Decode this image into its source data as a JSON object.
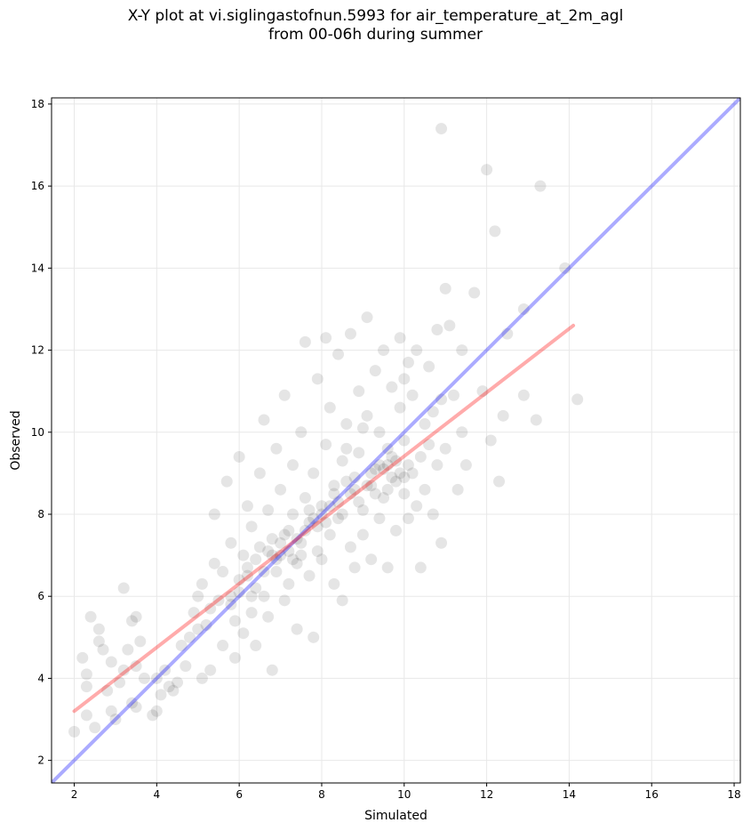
{
  "chart_data": {
    "type": "scatter",
    "title_lines": [
      "X-Y plot at vi.siglingastofnun.5993 for air_temperature_at_2m_agl",
      "from 00-06h during summer"
    ],
    "xlabel": "Simulated",
    "ylabel": "Observed",
    "xlim": [
      1.45,
      18.15
    ],
    "ylim": [
      1.45,
      18.15
    ],
    "xticks": [
      "2",
      "4",
      "6",
      "8",
      "10",
      "12",
      "14",
      "16",
      "18"
    ],
    "yticks": [
      "2",
      "4",
      "6",
      "8",
      "10",
      "12",
      "14",
      "16",
      "18"
    ],
    "grid": true,
    "point_color": "#000000",
    "point_alpha": 0.1,
    "colors": {
      "identity_line": "#0000ff",
      "fit_line": "#ff0000",
      "grid": "#e8e8e8"
    },
    "lines": [
      {
        "role": "identity",
        "x": [
          1.45,
          18.15
        ],
        "y": [
          1.45,
          18.15
        ]
      },
      {
        "role": "regression",
        "x": [
          2.0,
          14.1
        ],
        "y": [
          3.2,
          12.6
        ]
      }
    ],
    "points": [
      [
        2.0,
        2.7
      ],
      [
        2.3,
        3.1
      ],
      [
        2.5,
        2.8
      ],
      [
        2.3,
        3.8
      ],
      [
        2.3,
        4.1
      ],
      [
        2.2,
        4.5
      ],
      [
        2.4,
        5.5
      ],
      [
        2.6,
        4.9
      ],
      [
        2.7,
        4.7
      ],
      [
        2.6,
        5.2
      ],
      [
        2.9,
        3.2
      ],
      [
        2.8,
        3.7
      ],
      [
        2.9,
        4.4
      ],
      [
        3.0,
        3.0
      ],
      [
        3.1,
        3.9
      ],
      [
        3.2,
        4.2
      ],
      [
        3.2,
        6.2
      ],
      [
        3.3,
        4.7
      ],
      [
        3.4,
        5.4
      ],
      [
        3.4,
        3.4
      ],
      [
        3.5,
        3.3
      ],
      [
        3.5,
        4.3
      ],
      [
        3.6,
        4.9
      ],
      [
        3.5,
        5.5
      ],
      [
        3.7,
        4.0
      ],
      [
        3.9,
        3.1
      ],
      [
        4.0,
        3.2
      ],
      [
        4.1,
        3.6
      ],
      [
        4.0,
        4.0
      ],
      [
        4.2,
        4.2
      ],
      [
        4.3,
        3.8
      ],
      [
        4.4,
        3.7
      ],
      [
        4.5,
        3.9
      ],
      [
        4.6,
        4.8
      ],
      [
        4.7,
        4.3
      ],
      [
        4.8,
        5.0
      ],
      [
        4.9,
        5.6
      ],
      [
        5.0,
        6.0
      ],
      [
        5.0,
        5.2
      ],
      [
        5.1,
        4.0
      ],
      [
        5.1,
        6.3
      ],
      [
        5.2,
        5.3
      ],
      [
        5.3,
        5.7
      ],
      [
        5.3,
        4.2
      ],
      [
        5.4,
        6.8
      ],
      [
        5.4,
        8.0
      ],
      [
        5.5,
        5.9
      ],
      [
        5.6,
        6.6
      ],
      [
        5.6,
        4.8
      ],
      [
        5.7,
        8.8
      ],
      [
        5.8,
        6.0
      ],
      [
        5.8,
        7.3
      ],
      [
        5.9,
        5.4
      ],
      [
        5.9,
        4.5
      ],
      [
        6.0,
        6.4
      ],
      [
        6.0,
        9.4
      ],
      [
        6.1,
        7.0
      ],
      [
        6.1,
        5.1
      ],
      [
        6.2,
        8.2
      ],
      [
        6.2,
        6.7
      ],
      [
        6.3,
        5.6
      ],
      [
        6.3,
        7.7
      ],
      [
        6.4,
        4.8
      ],
      [
        6.4,
        6.2
      ],
      [
        6.5,
        9.0
      ],
      [
        6.5,
        7.2
      ],
      [
        6.6,
        6.0
      ],
      [
        6.6,
        10.3
      ],
      [
        6.7,
        5.5
      ],
      [
        6.7,
        8.1
      ],
      [
        6.8,
        4.2
      ],
      [
        6.8,
        7.4
      ],
      [
        6.9,
        6.6
      ],
      [
        6.9,
        9.6
      ],
      [
        7.0,
        7.0
      ],
      [
        7.0,
        8.6
      ],
      [
        7.1,
        5.9
      ],
      [
        7.1,
        10.9
      ],
      [
        7.2,
        7.6
      ],
      [
        7.2,
        6.3
      ],
      [
        7.3,
        9.2
      ],
      [
        7.3,
        8.0
      ],
      [
        7.4,
        6.8
      ],
      [
        7.4,
        5.2
      ],
      [
        7.5,
        7.3
      ],
      [
        7.5,
        10.0
      ],
      [
        7.6,
        8.4
      ],
      [
        7.6,
        12.2
      ],
      [
        7.7,
        6.5
      ],
      [
        7.7,
        7.8
      ],
      [
        7.8,
        9.0
      ],
      [
        7.8,
        5.0
      ],
      [
        7.9,
        7.1
      ],
      [
        7.9,
        11.3
      ],
      [
        8.0,
        8.2
      ],
      [
        8.0,
        6.9
      ],
      [
        8.1,
        9.7
      ],
      [
        8.1,
        12.3
      ],
      [
        8.2,
        7.5
      ],
      [
        8.2,
        10.6
      ],
      [
        8.3,
        8.5
      ],
      [
        8.3,
        6.3
      ],
      [
        8.4,
        7.9
      ],
      [
        8.4,
        11.9
      ],
      [
        8.5,
        9.3
      ],
      [
        8.5,
        5.9
      ],
      [
        8.6,
        8.8
      ],
      [
        8.6,
        10.2
      ],
      [
        8.7,
        7.2
      ],
      [
        8.7,
        12.4
      ],
      [
        8.8,
        8.9
      ],
      [
        8.8,
        6.7
      ],
      [
        8.9,
        9.5
      ],
      [
        8.9,
        11.0
      ],
      [
        9.0,
        8.1
      ],
      [
        9.0,
        7.5
      ],
      [
        9.1,
        10.4
      ],
      [
        9.1,
        12.8
      ],
      [
        9.2,
        8.7
      ],
      [
        9.2,
        6.9
      ],
      [
        9.3,
        9.1
      ],
      [
        9.3,
        11.5
      ],
      [
        9.4,
        7.9
      ],
      [
        9.4,
        10.0
      ],
      [
        9.5,
        8.4
      ],
      [
        9.5,
        12.0
      ],
      [
        9.6,
        9.6
      ],
      [
        9.6,
        6.7
      ],
      [
        9.7,
        8.9
      ],
      [
        9.7,
        11.1
      ],
      [
        9.8,
        9.3
      ],
      [
        9.8,
        7.6
      ],
      [
        9.9,
        10.6
      ],
      [
        9.9,
        12.3
      ],
      [
        10.0,
        8.5
      ],
      [
        10.0,
        9.8
      ],
      [
        10.1,
        7.9
      ],
      [
        10.1,
        11.7
      ],
      [
        10.2,
        9.0
      ],
      [
        10.2,
        10.9
      ],
      [
        10.3,
        8.2
      ],
      [
        10.3,
        12.0
      ],
      [
        10.4,
        9.4
      ],
      [
        10.4,
        6.7
      ],
      [
        10.5,
        10.2
      ],
      [
        10.5,
        8.6
      ],
      [
        10.6,
        11.6
      ],
      [
        10.6,
        9.7
      ],
      [
        10.7,
        8.0
      ],
      [
        10.7,
        10.5
      ],
      [
        10.8,
        9.2
      ],
      [
        10.8,
        12.5
      ],
      [
        10.9,
        7.3
      ],
      [
        10.9,
        10.8
      ],
      [
        11.0,
        13.5
      ],
      [
        11.0,
        9.6
      ],
      [
        11.1,
        12.6
      ],
      [
        11.2,
        10.9
      ],
      [
        11.3,
        8.6
      ],
      [
        11.4,
        10.0
      ],
      [
        11.4,
        12.0
      ],
      [
        11.5,
        9.2
      ],
      [
        11.7,
        13.4
      ],
      [
        11.9,
        11.0
      ],
      [
        12.0,
        16.4
      ],
      [
        12.1,
        9.8
      ],
      [
        12.2,
        14.9
      ],
      [
        12.3,
        8.8
      ],
      [
        12.4,
        10.4
      ],
      [
        12.5,
        12.4
      ],
      [
        12.9,
        13.0
      ],
      [
        12.9,
        10.9
      ],
      [
        13.2,
        10.3
      ],
      [
        13.3,
        16.0
      ],
      [
        13.9,
        14.0
      ],
      [
        14.2,
        10.8
      ],
      [
        10.9,
        17.4
      ],
      [
        10.0,
        11.3
      ],
      [
        9.0,
        10.1
      ],
      [
        8.6,
        9.6
      ],
      [
        7.6,
        7.6
      ],
      [
        7.8,
        7.9
      ],
      [
        8.0,
        8.0
      ],
      [
        7.4,
        7.4
      ],
      [
        8.2,
        8.2
      ],
      [
        7.2,
        7.1
      ],
      [
        6.9,
        6.9
      ],
      [
        8.4,
        8.3
      ],
      [
        7.9,
        7.7
      ],
      [
        8.3,
        8.7
      ],
      [
        7.1,
        7.5
      ],
      [
        7.3,
        6.9
      ],
      [
        8.1,
        7.8
      ],
      [
        6.6,
        6.6
      ],
      [
        6.4,
        6.9
      ],
      [
        8.7,
        8.5
      ],
      [
        9.2,
        9.0
      ],
      [
        9.5,
        9.1
      ],
      [
        9.8,
        8.8
      ],
      [
        9.9,
        9.0
      ],
      [
        10.0,
        8.9
      ],
      [
        9.6,
        8.6
      ],
      [
        9.4,
        9.2
      ],
      [
        9.7,
        9.4
      ],
      [
        10.1,
        9.2
      ],
      [
        9.3,
        8.5
      ],
      [
        8.9,
        8.3
      ],
      [
        8.5,
        8.0
      ],
      [
        7.5,
        7.0
      ],
      [
        7.0,
        7.3
      ],
      [
        6.2,
        6.5
      ],
      [
        6.0,
        6.1
      ],
      [
        5.8,
        5.8
      ],
      [
        6.3,
        6.0
      ],
      [
        6.7,
        7.1
      ],
      [
        7.7,
        8.1
      ],
      [
        8.8,
        8.6
      ],
      [
        9.1,
        8.7
      ],
      [
        9.6,
        9.2
      ],
      [
        6.8,
        7.0
      ]
    ]
  }
}
